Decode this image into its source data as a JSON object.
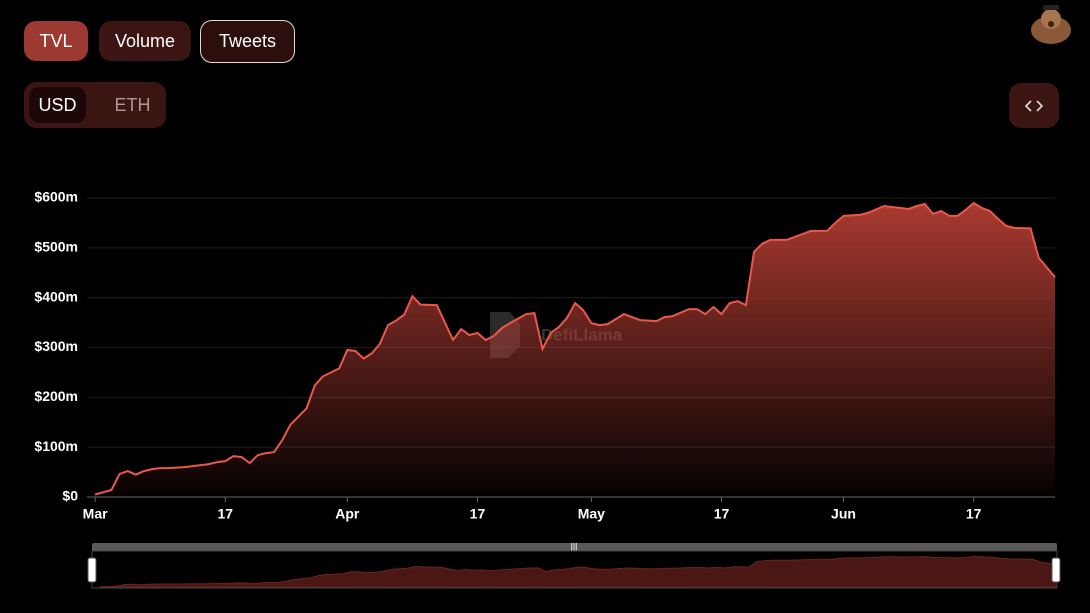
{
  "ui": {
    "metric_tabs": [
      "TVL",
      "Volume",
      "Tweets"
    ],
    "denomination_tabs": [
      "USD",
      "ETH"
    ],
    "watermark": "DefiLlama"
  },
  "chart_data": {
    "type": "area",
    "color": "#e8584b",
    "x": [
      0,
      2,
      3,
      4,
      5,
      6,
      7,
      8,
      9,
      10,
      11,
      12,
      13,
      14,
      15,
      16,
      17,
      18,
      19,
      20,
      21,
      22,
      23,
      24,
      26,
      27,
      28,
      30,
      31,
      32,
      33,
      34,
      35,
      36,
      37,
      38,
      39,
      40,
      42,
      43,
      44,
      45,
      46,
      47,
      48,
      49,
      50,
      51,
      53,
      54,
      55,
      56,
      57,
      58,
      59,
      60,
      61,
      62,
      63,
      65,
      66,
      67,
      69,
      70,
      71,
      73,
      74,
      75,
      76,
      77,
      78,
      79,
      80,
      81,
      82,
      83,
      85,
      86,
      88,
      90,
      91,
      92,
      94,
      95,
      97,
      98,
      100,
      101,
      102,
      103,
      104,
      105,
      106,
      107,
      108,
      109,
      110,
      111,
      112,
      113,
      115,
      116,
      118
    ],
    "values": [
      5000000,
      14000000,
      46000000,
      52000000,
      45000000,
      52000000,
      56000000,
      58000000,
      58000000,
      59000000,
      60000000,
      62000000,
      64000000,
      66000000,
      70000000,
      72000000,
      82000000,
      80000000,
      68000000,
      84000000,
      88000000,
      90000000,
      114000000,
      145000000,
      178000000,
      224000000,
      242000000,
      258000000,
      295000000,
      293000000,
      278000000,
      288000000,
      307000000,
      345000000,
      354000000,
      366000000,
      403000000,
      386000000,
      385000000,
      350000000,
      315000000,
      337000000,
      325000000,
      329000000,
      315000000,
      323000000,
      339000000,
      349000000,
      367000000,
      369000000,
      297000000,
      329000000,
      341000000,
      359000000,
      389000000,
      375000000,
      349000000,
      345000000,
      347000000,
      367000000,
      361000000,
      355000000,
      353000000,
      361000000,
      363000000,
      377000000,
      377000000,
      367000000,
      381000000,
      367000000,
      389000000,
      393000000,
      385000000,
      492000000,
      508000000,
      516000000,
      516000000,
      522000000,
      534000000,
      534000000,
      550000000,
      564000000,
      566000000,
      570000000,
      584000000,
      582000000,
      578000000,
      584000000,
      588000000,
      568000000,
      574000000,
      564000000,
      564000000,
      576000000,
      590000000,
      580000000,
      574000000,
      558000000,
      544000000,
      540000000,
      539000000,
      480000000,
      441000000
    ],
    "xlim": [
      -1,
      118
    ],
    "xticks": [
      {
        "value": 0,
        "label": "Mar"
      },
      {
        "value": 16,
        "label": "17"
      },
      {
        "value": 31,
        "label": "Apr"
      },
      {
        "value": 47,
        "label": "17"
      },
      {
        "value": 61,
        "label": "May"
      },
      {
        "value": 77,
        "label": "17"
      },
      {
        "value": 92,
        "label": "Jun"
      },
      {
        "value": 108,
        "label": "17"
      }
    ],
    "ylim": [
      0,
      600000000
    ],
    "yticks": [
      {
        "value": 0,
        "label": "$0"
      },
      {
        "value": 100000000,
        "label": "$100m"
      },
      {
        "value": 200000000,
        "label": "$200m"
      },
      {
        "value": 300000000,
        "label": "$300m"
      },
      {
        "value": 400000000,
        "label": "$400m"
      },
      {
        "value": 500000000,
        "label": "$500m"
      },
      {
        "value": 600000000,
        "label": "$600m"
      }
    ],
    "grid": true
  }
}
